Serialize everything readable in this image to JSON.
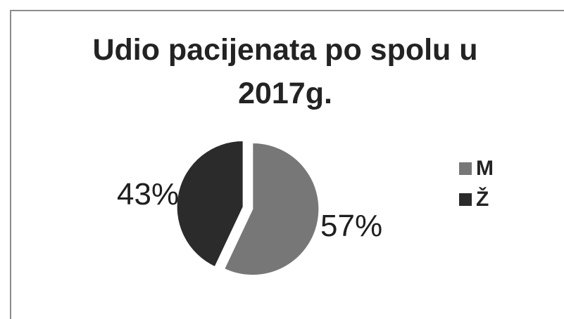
{
  "chart_data": {
    "type": "pie",
    "title": "Udio pacijenata po spolu u 2017g.",
    "categories": [
      "M",
      "Ž"
    ],
    "values": [
      57,
      43
    ],
    "data_labels": [
      "57%",
      "43%"
    ],
    "colors": [
      "#777777",
      "#2b2b2b"
    ],
    "legend_position": "right"
  }
}
